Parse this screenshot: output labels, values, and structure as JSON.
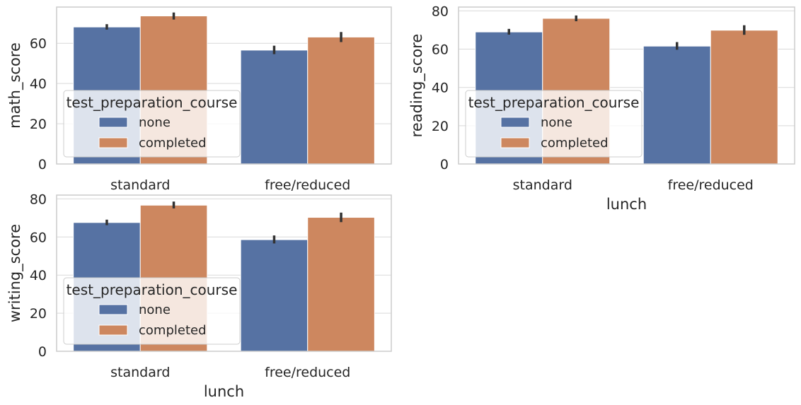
{
  "colors": {
    "none": "#5672a3",
    "completed": "#cd875f",
    "grid": "#d9d9d9",
    "frame": "#cccccc",
    "errorbar": "#333333"
  },
  "chart_data": [
    {
      "type": "bar",
      "ylabel": "math_score",
      "xlabel": "",
      "categories": [
        "standard",
        "free/reduced"
      ],
      "yticks": [
        0,
        20,
        40,
        60
      ],
      "ylim": [
        0,
        78
      ],
      "legend": {
        "title": "test_preparation_course",
        "placement": "lower-left"
      },
      "series": [
        {
          "name": "none",
          "values": [
            68.1,
            56.6
          ],
          "ci": [
            [
              66.8,
              69.5
            ],
            [
              54.6,
              58.8
            ]
          ]
        },
        {
          "name": "completed",
          "values": [
            73.6,
            63.1
          ],
          "ci": [
            [
              71.8,
              75.3
            ],
            [
              60.6,
              65.6
            ]
          ]
        }
      ]
    },
    {
      "type": "bar",
      "ylabel": "reading_score",
      "xlabel": "lunch",
      "categories": [
        "standard",
        "free/reduced"
      ],
      "yticks": [
        0,
        20,
        40,
        60,
        80
      ],
      "ylim": [
        0,
        82
      ],
      "legend": {
        "title": "test_preparation_course",
        "placement": "lower-left"
      },
      "series": [
        {
          "name": "none",
          "values": [
            69.0,
            61.6
          ],
          "ci": [
            [
              67.6,
              70.6
            ],
            [
              59.7,
              63.7
            ]
          ]
        },
        {
          "name": "completed",
          "values": [
            76.1,
            69.9
          ],
          "ci": [
            [
              74.6,
              77.6
            ],
            [
              67.5,
              72.5
            ]
          ]
        }
      ]
    },
    {
      "type": "bar",
      "ylabel": "writing_score",
      "xlabel": "lunch",
      "categories": [
        "standard",
        "free/reduced"
      ],
      "yticks": [
        0,
        20,
        40,
        60,
        80
      ],
      "ylim": [
        0,
        82
      ],
      "legend": {
        "title": "test_preparation_course",
        "placement": "lower-left"
      },
      "series": [
        {
          "name": "none",
          "values": [
            67.6,
            58.6
          ],
          "ci": [
            [
              66.2,
              69.1
            ],
            [
              56.6,
              60.8
            ]
          ]
        },
        {
          "name": "completed",
          "values": [
            76.7,
            70.3
          ],
          "ci": [
            [
              75.0,
              78.6
            ],
            [
              67.8,
              72.8
            ]
          ]
        }
      ]
    }
  ]
}
